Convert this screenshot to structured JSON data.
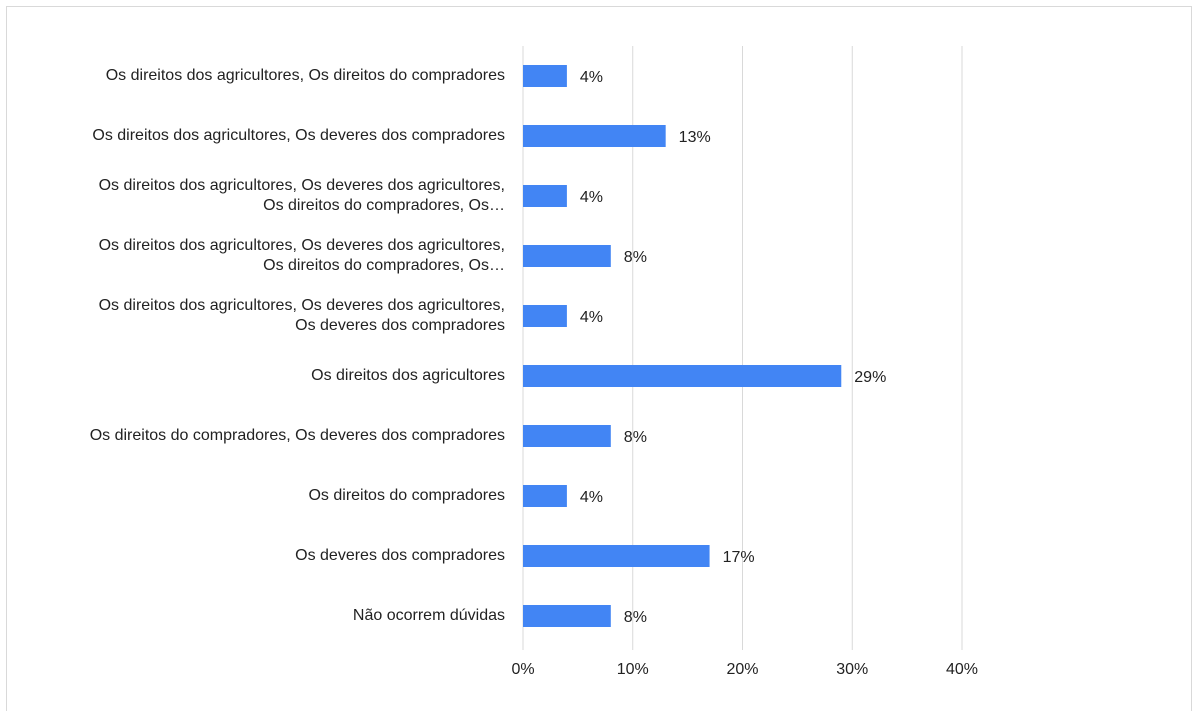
{
  "chart_data": {
    "type": "bar",
    "orientation": "horizontal",
    "categories": [
      "Os direitos dos agricultores, Os direitos do compradores",
      "Os direitos dos agricultores, Os deveres dos compradores",
      "Os direitos dos agricultores, Os deveres dos agricultores, Os direitos do compradores, Os…",
      "Os direitos dos agricultores, Os deveres dos agricultores, Os direitos do compradores, Os…",
      "Os direitos dos agricultores, Os deveres dos agricultores, Os deveres dos compradores",
      "Os direitos dos agricultores",
      "Os direitos do compradores, Os deveres dos compradores",
      "Os direitos do compradores",
      "Os deveres dos compradores",
      "Não ocorrem dúvidas"
    ],
    "values": [
      4,
      13,
      4,
      8,
      4,
      29,
      8,
      4,
      17,
      8
    ],
    "value_labels": [
      "4%",
      "13%",
      "4%",
      "8%",
      "4%",
      "29%",
      "8%",
      "4%",
      "17%",
      "8%"
    ],
    "color": "#4285f4",
    "xlim": [
      0,
      40
    ],
    "xticks": [
      {
        "value": 0,
        "label": "0%"
      },
      {
        "value": 10,
        "label": "10%"
      },
      {
        "value": 20,
        "label": "20%"
      },
      {
        "value": 30,
        "label": "30%"
      },
      {
        "value": 40,
        "label": "40%"
      }
    ],
    "grid": true
  }
}
